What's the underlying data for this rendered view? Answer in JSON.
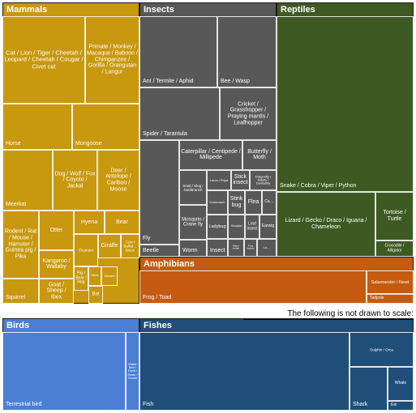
{
  "chart_data": {
    "type": "treemap",
    "note": "The following is not drawn to scale:",
    "groups": [
      {
        "name": "Mammals",
        "color": "#c8980e",
        "items": [
          {
            "label": "Cat / Lion / Tiger / Cheetah / Leopard / Cheetah / Cougar / Civet cat"
          },
          {
            "label": "Primate / Monkey / Macaque / Baboon / Chimpanzee / Gorilla / Orangutan / Langur"
          },
          {
            "label": "Horse"
          },
          {
            "label": "Mongoose"
          },
          {
            "label": "Meerkat"
          },
          {
            "label": "Dog / Wolf / Fox / Coyote / Jackal"
          },
          {
            "label": "Deer / Antelope / Caribou / Moose"
          },
          {
            "label": "Rodent / Rat / Mouse / Hamster / Guinea pig / Pika"
          },
          {
            "label": "Otter"
          },
          {
            "label": "Hyena"
          },
          {
            "label": "Bear"
          },
          {
            "label": "Kangaroo / Wallaby"
          },
          {
            "label": "Elephant"
          },
          {
            "label": "Giraffe"
          },
          {
            "label": "Cow / Buffal… Bison"
          },
          {
            "label": "Pig / Boar / Hog"
          },
          {
            "label": "Zebra"
          },
          {
            "label": "Weasel"
          },
          {
            "label": "Goat / Sheep / Ibex"
          },
          {
            "label": "Bat"
          },
          {
            "label": "Squirrel"
          }
        ]
      },
      {
        "name": "Insects",
        "color": "#585858",
        "items": [
          {
            "label": "Ant / Termite / Aphid"
          },
          {
            "label": "Bee / Wasp"
          },
          {
            "label": "Spider / Tarantula"
          },
          {
            "label": "Cricket / Grasshopper / Praying mantis / Leafhopper"
          },
          {
            "label": "Caterpillar / Centipede / Millipede"
          },
          {
            "label": "Butterfly / Moth"
          },
          {
            "label": "Fly"
          },
          {
            "label": "Snail / Slug / Nudibranch"
          },
          {
            "label": "Larva / Pupa"
          },
          {
            "label": "Stick insect"
          },
          {
            "label": "Dragonfly / Mayfly / Damselfly"
          },
          {
            "label": "Cockroach"
          },
          {
            "label": "Stink bug"
          },
          {
            "label": "Flea"
          },
          {
            "label": "Ca…"
          },
          {
            "label": "Mosquito / Crane fly"
          },
          {
            "label": "Ladybug"
          },
          {
            "label": "Scorpion"
          },
          {
            "label": "Leaf insect"
          },
          {
            "label": "Earwig"
          },
          {
            "label": "Beetle"
          },
          {
            "label": "Worm"
          },
          {
            "label": "Insect"
          },
          {
            "label": "Water strider"
          },
          {
            "label": "Frog hopper"
          },
          {
            "label": "Lo…"
          }
        ]
      },
      {
        "name": "Reptiles",
        "color": "#3e5a22",
        "items": [
          {
            "label": "Snake / Cobra / Viper / Python"
          },
          {
            "label": "Lizard / Gecko / Draco / Iguana / Chameleon"
          },
          {
            "label": "Tortoise / Turtle"
          },
          {
            "label": "Crocodile / Alligator"
          }
        ]
      },
      {
        "name": "Amphibians",
        "color": "#c55a11",
        "items": [
          {
            "label": "Frog / Toad"
          },
          {
            "label": "Salamander / Newt"
          },
          {
            "label": "Tadpole"
          }
        ]
      },
      {
        "name": "Birds",
        "color": "#4a7fd4",
        "items": [
          {
            "label": "Terrestrial bird"
          },
          {
            "label": "Water bird / Duck / Swan / Goose"
          }
        ]
      },
      {
        "name": "Fishes",
        "color": "#1f4e79",
        "items": [
          {
            "label": "Fish"
          },
          {
            "label": "Dolphin / Orca"
          },
          {
            "label": "Shark"
          },
          {
            "label": "Whale"
          },
          {
            "label": "Eel"
          }
        ]
      }
    ]
  }
}
